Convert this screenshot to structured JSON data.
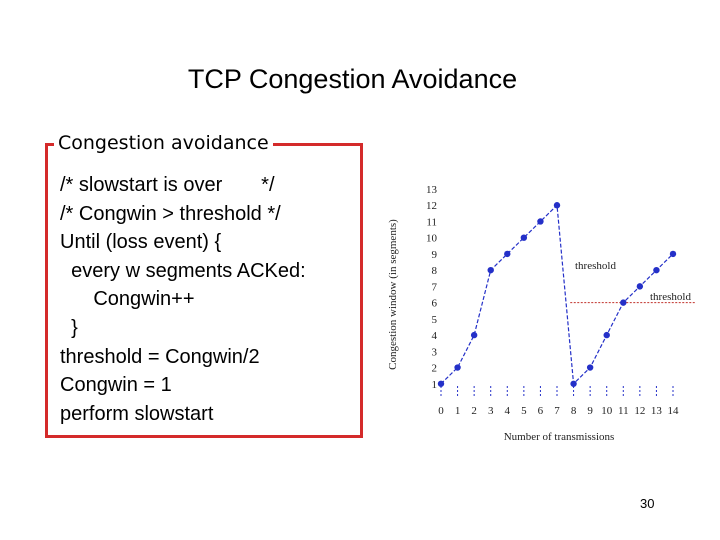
{
  "title": "TCP Congestion Avoidance",
  "box": {
    "label": "Congestion avoidance",
    "lines": [
      "/* slowstart is over       */",
      "/* Congwin > threshold */",
      "Until (loss event) {",
      "  every w segments ACKed:",
      "      Congwin++",
      "  }",
      "threshold = Congwin/2",
      "Congwin = 1",
      "perform slowstart"
    ]
  },
  "chart_data": {
    "type": "line",
    "x_label": "Number of transmissions",
    "y_label": "Congestion window (in segments)",
    "x": [
      0,
      1,
      2,
      3,
      4,
      5,
      6,
      7,
      8,
      9,
      10,
      11,
      12,
      13,
      14
    ],
    "series": [
      {
        "name": "Congwin",
        "color": "#2430c8",
        "values": [
          1,
          2,
          4,
          8,
          9,
          10,
          11,
          12,
          1,
          2,
          4,
          6,
          7,
          8,
          9
        ]
      }
    ],
    "xlim": [
      0,
      14
    ],
    "ylim": [
      0,
      13
    ],
    "xticks": [
      0,
      1,
      2,
      3,
      4,
      5,
      6,
      7,
      8,
      9,
      10,
      11,
      12,
      13,
      14
    ],
    "yticks": [
      1,
      2,
      3,
      4,
      5,
      6,
      7,
      8,
      9,
      10,
      11,
      12,
      13
    ],
    "threshold_line": 6,
    "threshold_color": "#c0302a",
    "annotations": [
      "threshold",
      "threshold"
    ]
  },
  "page_number": "30"
}
